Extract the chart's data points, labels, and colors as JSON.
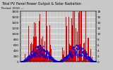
{
  "title": "Total PV Panel Power Output & Solar Radiation",
  "subtitle": "Period: 2010 ---",
  "background_color": "#c8c8c8",
  "plot_bg_color": "#c8c8c8",
  "grid_color": "#ffffff",
  "bar_color": "#dd0000",
  "dot_color": "#0000dd",
  "ylim": [
    0,
    1800
  ],
  "yticks": [
    0,
    200,
    400,
    600,
    800,
    1000,
    1200,
    1400,
    1600,
    1800
  ],
  "ytick_labels_right": [
    "0",
    "2",
    "4",
    "6",
    "8",
    "10",
    "12",
    "14",
    "16",
    "18"
  ],
  "title_fontsize": 3.5,
  "subtitle_fontsize": 3.0,
  "tick_fontsize": 3.0,
  "n_points": 365
}
